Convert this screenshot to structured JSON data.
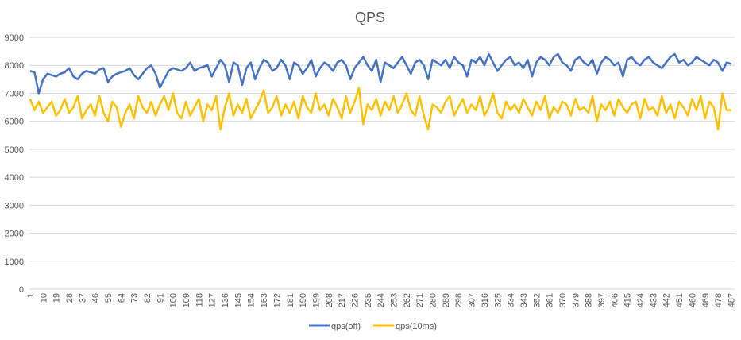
{
  "chart_data": {
    "type": "line",
    "title": "QPS",
    "xlabel": "",
    "ylabel": "",
    "ylim": [
      0,
      9000
    ],
    "y_ticks": [
      0,
      1000,
      2000,
      3000,
      4000,
      5000,
      6000,
      7000,
      8000,
      9000
    ],
    "x_range": [
      1,
      489
    ],
    "x_tick_labels": [
      1,
      10,
      19,
      28,
      37,
      46,
      55,
      64,
      73,
      82,
      91,
      100,
      109,
      118,
      127,
      136,
      145,
      154,
      163,
      172,
      181,
      190,
      199,
      208,
      217,
      226,
      235,
      244,
      253,
      262,
      271,
      280,
      289,
      298,
      307,
      316,
      325,
      334,
      343,
      352,
      361,
      370,
      379,
      388,
      397,
      406,
      415,
      424,
      433,
      442,
      451,
      460,
      469,
      478,
      487
    ],
    "grid": true,
    "legend_position": "bottom",
    "x_sample_start": 1,
    "x_sample_step": 3,
    "series": [
      {
        "name": "qps(off)",
        "color": "#4472C4",
        "values": [
          7800,
          7750,
          7000,
          7500,
          7700,
          7650,
          7600,
          7700,
          7750,
          7900,
          7600,
          7500,
          7700,
          7800,
          7750,
          7700,
          7850,
          7900,
          7400,
          7600,
          7700,
          7750,
          7800,
          7900,
          7650,
          7500,
          7700,
          7900,
          8000,
          7700,
          7200,
          7500,
          7800,
          7900,
          7850,
          7800,
          7900,
          8100,
          7800,
          7900,
          7950,
          8000,
          7600,
          7900,
          8200,
          8000,
          7400,
          8100,
          8000,
          7300,
          7900,
          8100,
          7500,
          7900,
          8200,
          8100,
          7800,
          7900,
          8200,
          8000,
          7500,
          8100,
          8000,
          7700,
          7900,
          8200,
          7600,
          7900,
          8100,
          8000,
          7800,
          8100,
          8200,
          8000,
          7500,
          7900,
          8100,
          8300,
          8000,
          7800,
          8200,
          7400,
          8100,
          8000,
          7900,
          8100,
          8300,
          8000,
          7700,
          8100,
          8200,
          8000,
          7500,
          8200,
          8100,
          8000,
          8200,
          7900,
          8300,
          8100,
          8000,
          7600,
          8200,
          8100,
          8300,
          8000,
          8400,
          8100,
          7800,
          8000,
          8200,
          8300,
          8000,
          8100,
          7900,
          8200,
          7600,
          8100,
          8300,
          8200,
          8000,
          8300,
          8400,
          8100,
          8000,
          7800,
          8200,
          8300,
          8100,
          8000,
          8200,
          7700,
          8100,
          8300,
          8200,
          8000,
          8100,
          7600,
          8200,
          8300,
          8100,
          8000,
          8200,
          8300,
          8100,
          8000,
          7900,
          8100,
          8300,
          8400,
          8100,
          8200,
          8000,
          8100,
          8300,
          8200,
          8100,
          8000,
          8200,
          8100,
          7800,
          8100,
          8050
        ]
      },
      {
        "name": "qps(10ms)",
        "color": "#FFC000",
        "values": [
          6800,
          6400,
          6700,
          6300,
          6500,
          6700,
          6200,
          6400,
          6800,
          6300,
          6500,
          6900,
          6100,
          6400,
          6600,
          6200,
          6900,
          6300,
          6000,
          6700,
          6500,
          5800,
          6300,
          6600,
          6100,
          6900,
          6500,
          6300,
          6700,
          6200,
          6600,
          6900,
          6400,
          7000,
          6300,
          6100,
          6700,
          6200,
          6500,
          6800,
          6000,
          6600,
          6400,
          6900,
          5700,
          6500,
          7000,
          6200,
          6600,
          6300,
          6800,
          6100,
          6400,
          6700,
          7100,
          6300,
          6500,
          6900,
          6200,
          6600,
          6300,
          6700,
          6100,
          6900,
          6500,
          6300,
          7000,
          6400,
          6600,
          6200,
          6800,
          6500,
          6100,
          6900,
          6300,
          6700,
          7200,
          5900,
          6600,
          6400,
          6800,
          6200,
          6700,
          6400,
          6900,
          6300,
          6600,
          7000,
          6400,
          6200,
          6900,
          6200,
          5700,
          6600,
          6500,
          6300,
          6700,
          6900,
          6200,
          6500,
          6800,
          6300,
          6600,
          6400,
          6900,
          6200,
          6500,
          7000,
          6300,
          6100,
          6700,
          6400,
          6600,
          6300,
          6800,
          6500,
          6200,
          6700,
          6400,
          6900,
          6100,
          6500,
          6300,
          6700,
          6600,
          6200,
          6800,
          6400,
          6500,
          6300,
          6900,
          6000,
          6600,
          6400,
          6700,
          6200,
          6800,
          6500,
          6300,
          6600,
          6700,
          6100,
          6800,
          6400,
          6500,
          6200,
          6900,
          6300,
          6600,
          6100,
          6700,
          6500,
          6200,
          6800,
          6400,
          6900,
          6100,
          6700,
          6500,
          5700,
          7000,
          6400,
          6400
        ]
      }
    ]
  }
}
